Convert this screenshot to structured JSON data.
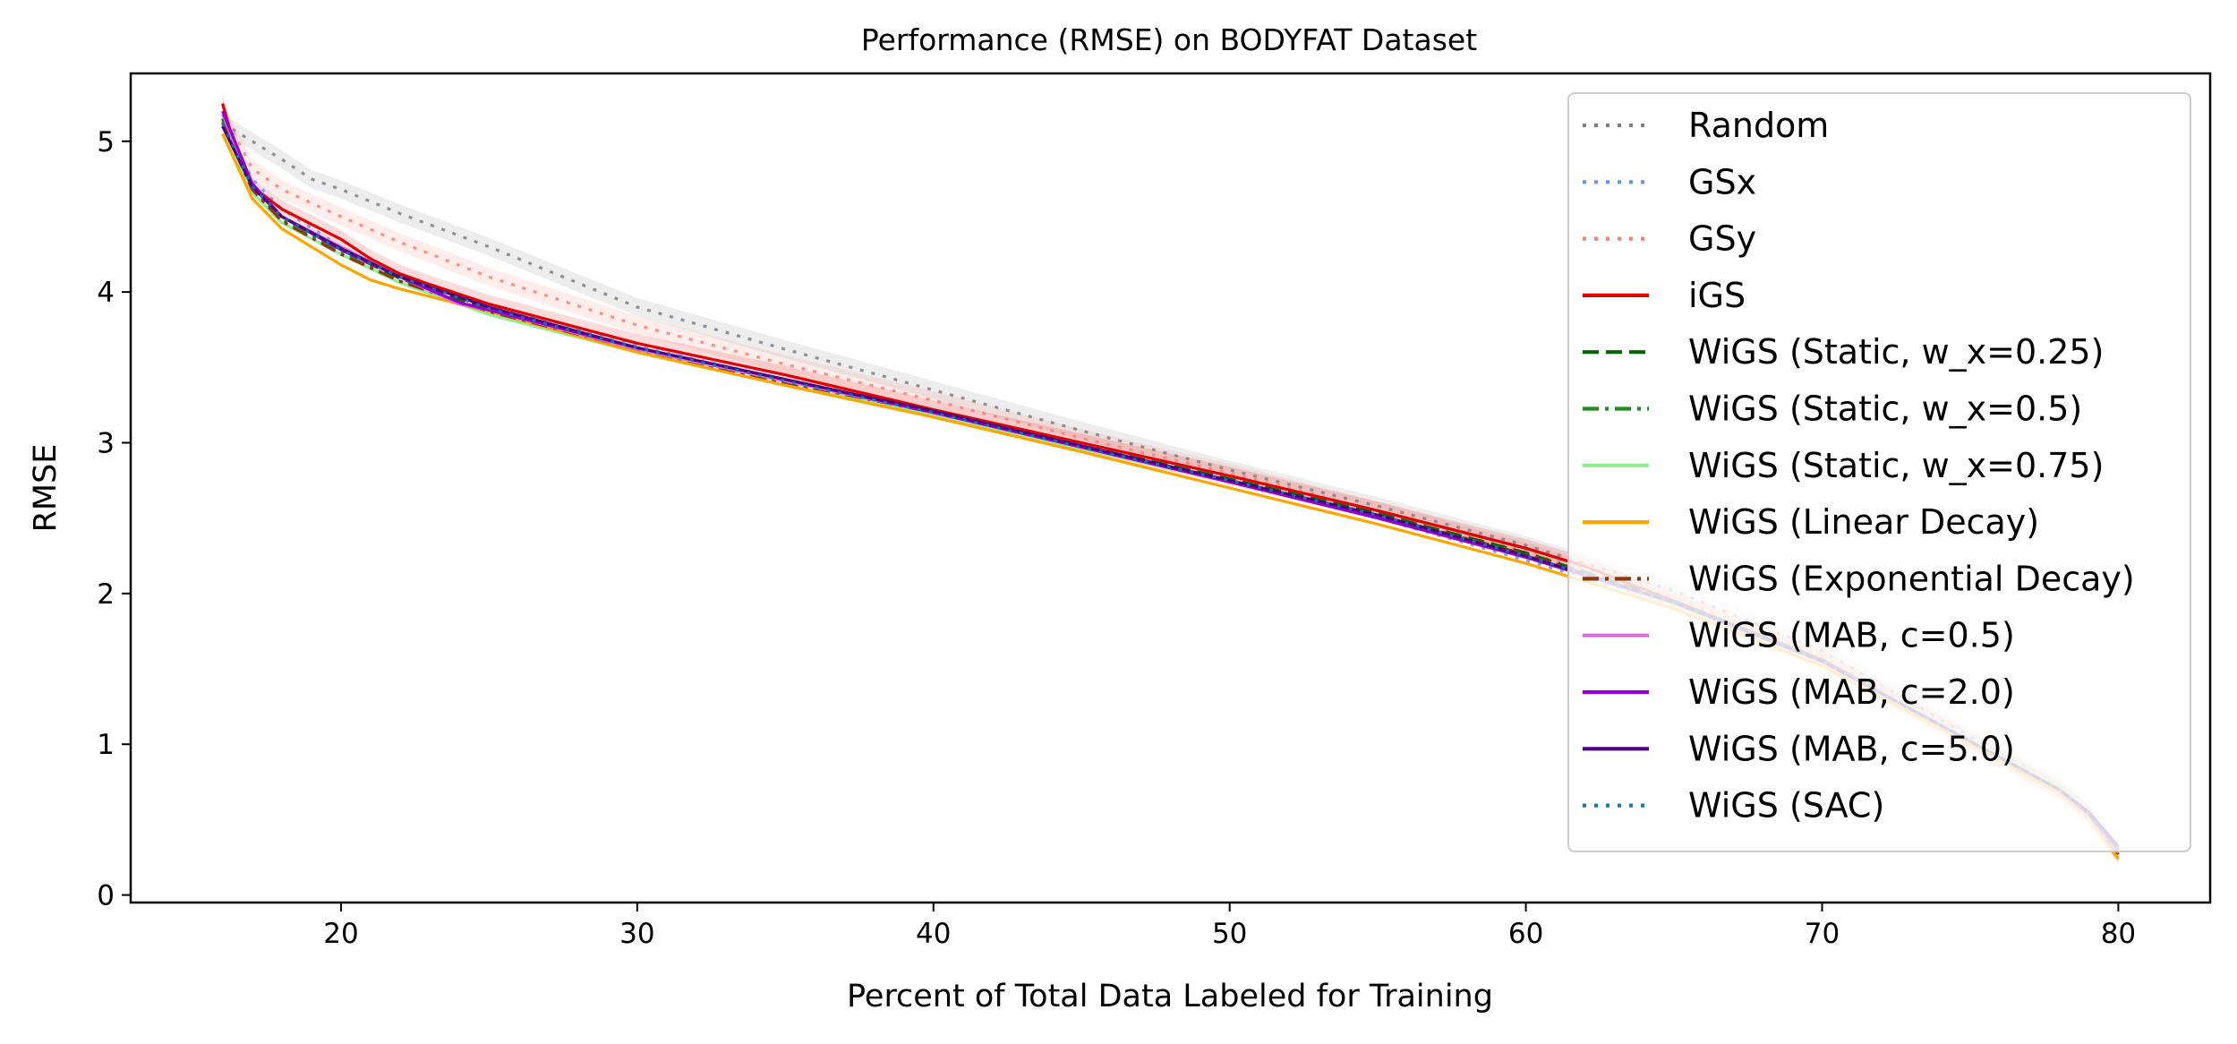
{
  "chart_data": {
    "type": "line",
    "title": "Performance (RMSE) on BODYFAT Dataset",
    "xlabel": "Percent of Total Data Labeled for Training",
    "ylabel": "RMSE",
    "xlim": [
      12.9,
      83.1
    ],
    "ylim": [
      -0.05,
      5.45
    ],
    "xticks": [
      20,
      30,
      40,
      50,
      60,
      70,
      80
    ],
    "yticks": [
      0,
      1,
      2,
      3,
      4,
      5
    ],
    "grid": false,
    "legend_position": "top-right",
    "series": [
      {
        "name": "Random",
        "color": "#808080",
        "dash": "dot",
        "band": true,
        "x": [
          16,
          17,
          18,
          19,
          20,
          22,
          25,
          30,
          35,
          40,
          45,
          50,
          55,
          60,
          65,
          70,
          75,
          78,
          79,
          80
        ],
        "y": [
          5.12,
          5.0,
          4.88,
          4.75,
          4.68,
          4.52,
          4.3,
          3.9,
          3.62,
          3.35,
          3.08,
          2.82,
          2.58,
          2.32,
          2.02,
          1.62,
          1.05,
          0.72,
          0.55,
          0.28
        ]
      },
      {
        "name": "GSx",
        "color": "#6495ED",
        "dash": "dot",
        "band": false,
        "x": [
          16,
          17,
          18,
          20,
          22,
          25,
          30,
          35,
          40,
          45,
          50,
          55,
          60,
          65,
          70,
          75,
          78,
          79,
          80
        ],
        "y": [
          5.15,
          4.75,
          4.55,
          4.3,
          4.1,
          3.9,
          3.64,
          3.42,
          3.21,
          2.98,
          2.75,
          2.5,
          2.22,
          1.93,
          1.55,
          1.01,
          0.69,
          0.53,
          0.3
        ]
      },
      {
        "name": "GSy",
        "color": "#FA8072",
        "dash": "dot",
        "band": true,
        "x": [
          16,
          17,
          18,
          20,
          22,
          25,
          30,
          35,
          40,
          45,
          50,
          55,
          60,
          65,
          70,
          75,
          78,
          79,
          80
        ],
        "y": [
          5.2,
          4.82,
          4.68,
          4.5,
          4.33,
          4.1,
          3.78,
          3.52,
          3.28,
          3.03,
          2.8,
          2.55,
          2.28,
          1.97,
          1.58,
          1.03,
          0.7,
          0.54,
          0.3
        ]
      },
      {
        "name": "iGS",
        "color": "#E00000",
        "dash": "solid",
        "band": true,
        "x": [
          16,
          16.5,
          17,
          18,
          19,
          20,
          21,
          22,
          23,
          25,
          30,
          35,
          40,
          45,
          50,
          55,
          60,
          62,
          65,
          70,
          75,
          78,
          79,
          80
        ],
        "y": [
          5.25,
          4.9,
          4.7,
          4.55,
          4.45,
          4.35,
          4.22,
          4.12,
          4.05,
          3.92,
          3.66,
          3.45,
          3.22,
          3.0,
          2.78,
          2.55,
          2.3,
          2.18,
          1.95,
          1.56,
          1.02,
          0.69,
          0.53,
          0.27
        ]
      },
      {
        "name": "WiGS (Static, w_x=0.25)",
        "color": "#006400",
        "dash": "dash",
        "band": false,
        "x": [
          16,
          17,
          18,
          20,
          22,
          25,
          30,
          35,
          40,
          45,
          50,
          55,
          60,
          65,
          70,
          75,
          78,
          79,
          80
        ],
        "y": [
          5.15,
          4.7,
          4.5,
          4.28,
          4.09,
          3.88,
          3.63,
          3.41,
          3.21,
          2.98,
          2.76,
          2.53,
          2.27,
          1.95,
          1.56,
          1.02,
          0.7,
          0.54,
          0.28
        ]
      },
      {
        "name": "WiGS (Static, w_x=0.5)",
        "color": "#228B22",
        "dash": "dashdot",
        "band": false,
        "x": [
          16,
          17,
          18,
          20,
          22,
          25,
          30,
          35,
          40,
          45,
          50,
          55,
          60,
          65,
          70,
          75,
          78,
          79,
          80
        ],
        "y": [
          5.13,
          4.68,
          4.48,
          4.26,
          4.07,
          3.87,
          3.61,
          3.39,
          3.2,
          2.97,
          2.74,
          2.52,
          2.26,
          1.94,
          1.55,
          1.02,
          0.7,
          0.54,
          0.29
        ]
      },
      {
        "name": "WiGS (Static, w_x=0.75)",
        "color": "#90EE90",
        "dash": "solid",
        "band": false,
        "x": [
          16,
          17,
          18,
          20,
          22,
          25,
          30,
          35,
          40,
          45,
          50,
          55,
          60,
          65,
          70,
          75,
          78,
          79,
          80
        ],
        "y": [
          5.1,
          4.66,
          4.46,
          4.25,
          4.06,
          3.85,
          3.6,
          3.38,
          3.19,
          2.96,
          2.74,
          2.51,
          2.25,
          1.93,
          1.55,
          1.03,
          0.72,
          0.56,
          0.33
        ]
      },
      {
        "name": "WiGS (Linear Decay)",
        "color": "#FFA500",
        "dash": "solid",
        "band": false,
        "x": [
          16,
          17,
          18,
          20,
          21,
          22,
          25,
          30,
          35,
          40,
          45,
          50,
          55,
          60,
          65,
          70,
          75,
          78,
          79,
          80
        ],
        "y": [
          5.05,
          4.62,
          4.42,
          4.18,
          4.08,
          4.02,
          3.87,
          3.6,
          3.38,
          3.17,
          2.94,
          2.7,
          2.46,
          2.2,
          1.9,
          1.52,
          1.0,
          0.68,
          0.52,
          0.24
        ]
      },
      {
        "name": "WiGS (Exponential Decay)",
        "color": "#8B3A0F",
        "dash": "dashdot",
        "band": false,
        "x": [
          16,
          17,
          18,
          20,
          22,
          25,
          30,
          35,
          40,
          45,
          50,
          55,
          60,
          65,
          70,
          75,
          78,
          79,
          80
        ],
        "y": [
          5.12,
          4.68,
          4.47,
          4.25,
          4.07,
          3.87,
          3.62,
          3.4,
          3.2,
          2.97,
          2.75,
          2.52,
          2.26,
          1.94,
          1.55,
          1.02,
          0.7,
          0.54,
          0.27
        ]
      },
      {
        "name": "WiGS (MAB, c=0.5)",
        "color": "#DA70D6",
        "dash": "solid",
        "band": false,
        "x": [
          16,
          17,
          18,
          20,
          22,
          24,
          25,
          30,
          35,
          40,
          45,
          50,
          55,
          60,
          65,
          70,
          75,
          78,
          79,
          80
        ],
        "y": [
          5.18,
          4.7,
          4.5,
          4.3,
          4.1,
          3.92,
          3.88,
          3.62,
          3.41,
          3.2,
          2.97,
          2.75,
          2.51,
          2.25,
          1.94,
          1.55,
          1.02,
          0.7,
          0.54,
          0.28
        ]
      },
      {
        "name": "WiGS (MAB, c=2.0)",
        "color": "#9400D3",
        "dash": "solid",
        "band": false,
        "x": [
          16,
          17,
          18,
          20,
          22,
          24,
          25,
          30,
          35,
          40,
          45,
          50,
          55,
          60,
          65,
          70,
          75,
          78,
          79,
          80
        ],
        "y": [
          5.2,
          4.72,
          4.5,
          4.28,
          4.1,
          3.93,
          3.88,
          3.63,
          3.42,
          3.2,
          2.97,
          2.74,
          2.5,
          2.24,
          1.94,
          1.55,
          1.02,
          0.7,
          0.54,
          0.3
        ]
      },
      {
        "name": "WiGS (MAB, c=5.0)",
        "color": "#4B0082",
        "dash": "solid",
        "band": false,
        "x": [
          16,
          17,
          18,
          20,
          22,
          25,
          30,
          35,
          40,
          45,
          50,
          55,
          60,
          65,
          70,
          75,
          78,
          79,
          80
        ],
        "y": [
          5.1,
          4.7,
          4.5,
          4.29,
          4.1,
          3.9,
          3.63,
          3.42,
          3.21,
          2.98,
          2.75,
          2.52,
          2.25,
          1.94,
          1.55,
          1.02,
          0.7,
          0.55,
          0.32
        ]
      },
      {
        "name": "WiGS (SAC)",
        "color": "#1F77B4",
        "dash": "dot",
        "band": false,
        "x": [
          16,
          17,
          18,
          20,
          22,
          25,
          30,
          35,
          40,
          45,
          50,
          55,
          60,
          65,
          70,
          75,
          78,
          79,
          80
        ],
        "y": [
          5.12,
          4.7,
          4.5,
          4.28,
          4.1,
          3.89,
          3.63,
          3.41,
          3.2,
          2.97,
          2.75,
          2.52,
          2.25,
          1.94,
          1.55,
          1.02,
          0.7,
          0.54,
          0.29
        ]
      }
    ]
  }
}
